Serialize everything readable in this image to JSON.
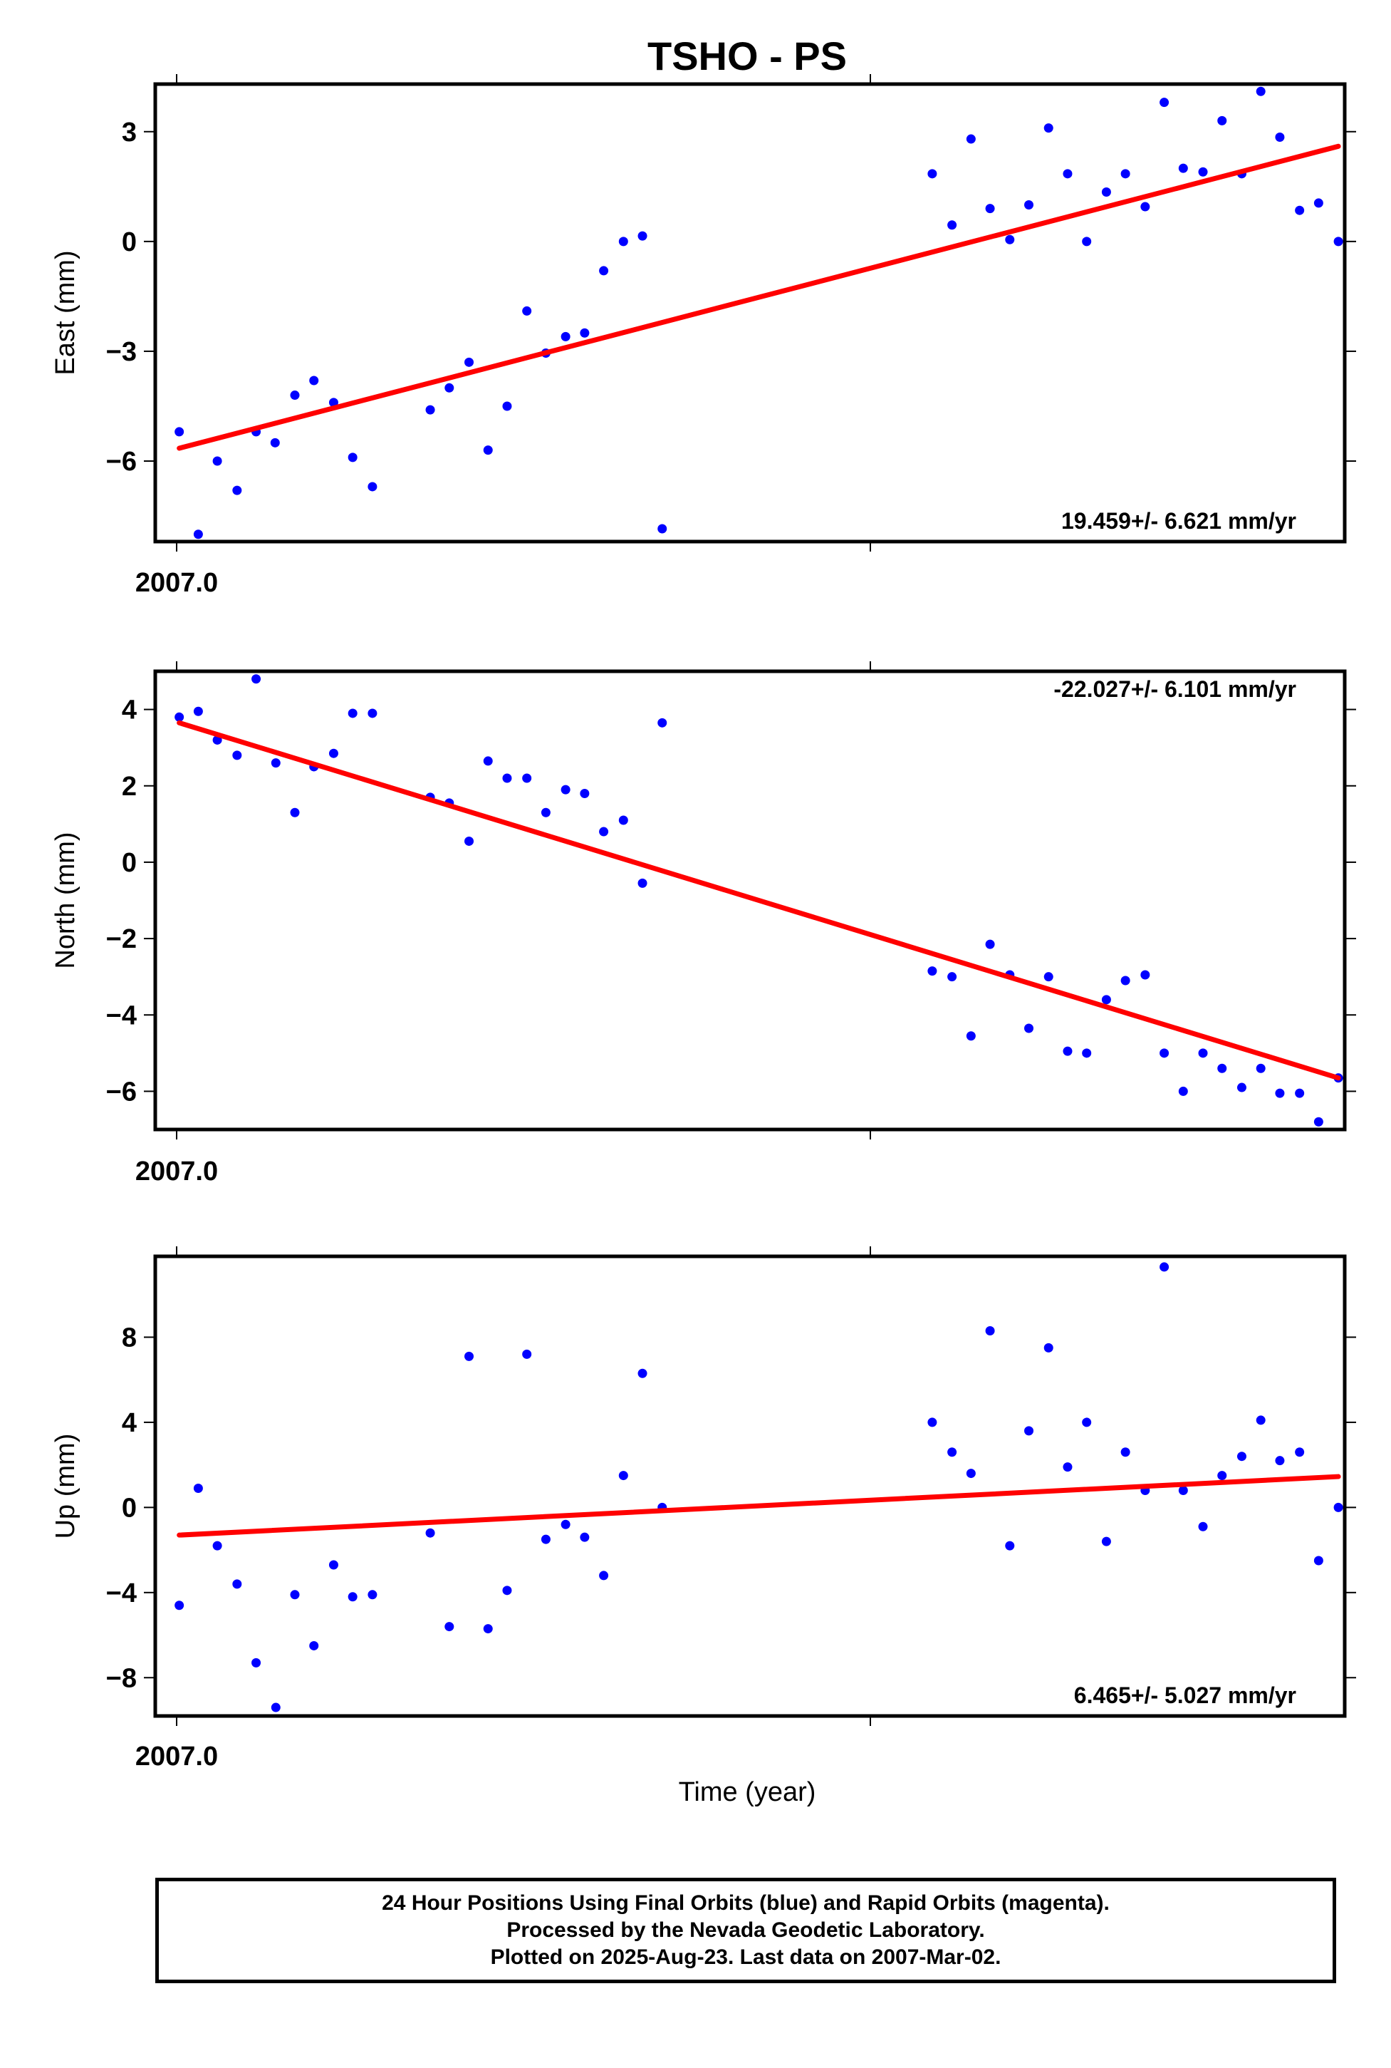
{
  "title": "TSHO - PS",
  "xlabel": "Time (year)",
  "colors": {
    "points": "#0000ff",
    "fit": "#ff0000",
    "frame": "#000000"
  },
  "caption": [
    "24 Hour Positions Using Final Orbits (blue) and Rapid Orbits (magenta).",
    "Processed by the Nevada Geodetic Laboratory.",
    "Plotted on 2025-Aug-23. Last data on 2007-Mar-02."
  ],
  "chart_data": [
    {
      "type": "scatter",
      "title": "TSHO - PS",
      "ylabel": "East (mm)",
      "xlabel": "",
      "x_tick_labels": [
        "2007.0"
      ],
      "xlim": [
        2006.998,
        2007.1667
      ],
      "ylim": [
        -8.2,
        4.3
      ],
      "y_ticks": [
        3,
        0,
        -3,
        -6
      ],
      "y_tick_labels": [
        "3",
        "0",
        "−3",
        "−6"
      ],
      "rate_label": "19.459+/- 6.621 mm/yr",
      "rate_position": "bottom-right",
      "grid": false,
      "series": [
        {
          "kind": "points",
          "x": [
            2007.0014,
            2007.0041,
            2007.0068,
            2007.0096,
            2007.0123,
            2007.015,
            2007.0178,
            2007.0205,
            2007.0233,
            2007.026,
            2007.0288,
            2007.037,
            2007.0397,
            2007.0425,
            2007.0452,
            2007.0479,
            2007.0507,
            2007.0534,
            2007.0562,
            2007.0589,
            2007.0616,
            2007.0644,
            2007.0671,
            2007.0699,
            2007.1082,
            2007.111,
            2007.1137,
            2007.1164,
            2007.1192,
            2007.1219,
            2007.1247,
            2007.1274,
            2007.1301,
            2007.1329,
            2007.1356,
            2007.1384,
            2007.1411,
            2007.1438,
            2007.1466,
            2007.1493,
            2007.1521,
            2007.1548,
            2007.1575,
            2007.1603,
            2007.163,
            2007.1658
          ],
          "y": [
            -5.2,
            -8.0,
            -6.0,
            -6.8,
            -5.2,
            -5.5,
            -4.2,
            -3.8,
            -4.4,
            -5.9,
            -6.7,
            -4.6,
            -4.0,
            -3.3,
            -5.7,
            -4.5,
            -1.9,
            -3.05,
            -2.6,
            -2.5,
            -0.8,
            0.0,
            0.15,
            -7.85,
            1.85,
            0.45,
            2.8,
            0.9,
            0.05,
            1.0,
            3.1,
            1.85,
            0.0,
            1.35,
            1.85,
            0.95,
            3.8,
            2.0,
            1.9,
            3.3,
            1.85,
            4.1,
            2.85,
            0.85,
            1.05,
            0.0
          ]
        }
      ],
      "fit": {
        "x": [
          2007.0014,
          2007.1658
        ],
        "y": [
          -5.65,
          2.6
        ]
      }
    },
    {
      "type": "scatter",
      "ylabel": "North (mm)",
      "xlabel": "",
      "x_tick_labels": [
        "2007.0"
      ],
      "xlim": [
        2006.998,
        2007.1667
      ],
      "ylim": [
        -7.0,
        5.0
      ],
      "y_ticks": [
        4,
        2,
        0,
        -2,
        -4,
        -6
      ],
      "y_tick_labels": [
        "4",
        "2",
        "0",
        "−2",
        "−4",
        "−6"
      ],
      "rate_label": "-22.027+/- 6.101 mm/yr",
      "rate_position": "top-right",
      "grid": false,
      "series": [
        {
          "kind": "points",
          "x": [
            2007.0014,
            2007.0041,
            2007.0068,
            2007.0096,
            2007.0123,
            2007.0151,
            2007.0178,
            2007.0205,
            2007.0233,
            2007.026,
            2007.0288,
            2007.037,
            2007.0397,
            2007.0425,
            2007.0452,
            2007.0479,
            2007.0507,
            2007.0534,
            2007.0562,
            2007.0589,
            2007.0616,
            2007.0644,
            2007.0671,
            2007.0699,
            2007.1082,
            2007.111,
            2007.1137,
            2007.1164,
            2007.1192,
            2007.1219,
            2007.1247,
            2007.1274,
            2007.1301,
            2007.1329,
            2007.1356,
            2007.1384,
            2007.1411,
            2007.1438,
            2007.1466,
            2007.1493,
            2007.1521,
            2007.1548,
            2007.1575,
            2007.1603,
            2007.163,
            2007.1658
          ],
          "y": [
            3.8,
            3.95,
            3.2,
            2.8,
            4.8,
            2.6,
            1.3,
            2.5,
            2.85,
            3.9,
            3.9,
            1.7,
            1.55,
            0.55,
            2.65,
            2.2,
            2.2,
            1.3,
            1.9,
            1.8,
            0.8,
            1.1,
            -0.55,
            3.65,
            -2.85,
            -3.0,
            -4.55,
            -2.15,
            -2.95,
            -4.35,
            -3.0,
            -4.95,
            -5.0,
            -3.6,
            -3.1,
            -2.95,
            -5.0,
            -6.0,
            -5.0,
            -5.4,
            -5.9,
            -5.4,
            -6.05,
            -6.05,
            -6.8,
            -5.65
          ]
        }
      ],
      "fit": {
        "x": [
          2007.0014,
          2007.1658
        ],
        "y": [
          3.65,
          -5.65
        ]
      }
    },
    {
      "type": "scatter",
      "ylabel": "Up (mm)",
      "xlabel": "Time (year)",
      "x_tick_labels": [
        "2007.0"
      ],
      "xlim": [
        2006.998,
        2007.1667
      ],
      "ylim": [
        -9.8,
        11.8
      ],
      "y_ticks": [
        8,
        4,
        0,
        -4,
        -8
      ],
      "y_tick_labels": [
        "8",
        "4",
        "0",
        "−4",
        "−8"
      ],
      "rate_label": "6.465+/- 5.027 mm/yr",
      "rate_position": "bottom-right",
      "grid": false,
      "series": [
        {
          "kind": "points",
          "x": [
            2007.0014,
            2007.0041,
            2007.0068,
            2007.0096,
            2007.0123,
            2007.0151,
            2007.0178,
            2007.0205,
            2007.0233,
            2007.026,
            2007.0288,
            2007.037,
            2007.0397,
            2007.0425,
            2007.0452,
            2007.0479,
            2007.0507,
            2007.0534,
            2007.0562,
            2007.0589,
            2007.0616,
            2007.0644,
            2007.0671,
            2007.0699,
            2007.1082,
            2007.111,
            2007.1137,
            2007.1164,
            2007.1192,
            2007.1219,
            2007.1247,
            2007.1274,
            2007.1301,
            2007.1329,
            2007.1356,
            2007.1384,
            2007.1411,
            2007.1438,
            2007.1466,
            2007.1493,
            2007.1521,
            2007.1548,
            2007.1575,
            2007.1603,
            2007.163,
            2007.1658
          ],
          "y": [
            -4.6,
            0.9,
            -1.8,
            -3.6,
            -7.3,
            -9.4,
            -4.1,
            -6.5,
            -2.7,
            -4.2,
            -4.1,
            -1.2,
            -5.6,
            7.1,
            -5.7,
            -3.9,
            7.2,
            -1.5,
            -0.8,
            -1.4,
            -3.2,
            1.5,
            6.3,
            0.0,
            4.0,
            2.6,
            1.6,
            8.3,
            -1.8,
            3.6,
            7.5,
            1.9,
            4.0,
            -1.6,
            2.6,
            0.8,
            11.3,
            0.8,
            -0.9,
            1.5,
            2.4,
            4.1,
            2.2,
            2.6,
            -2.5,
            0.0
          ]
        }
      ],
      "fit": {
        "x": [
          2007.0014,
          2007.1658
        ],
        "y": [
          -1.3,
          1.45
        ]
      }
    }
  ]
}
